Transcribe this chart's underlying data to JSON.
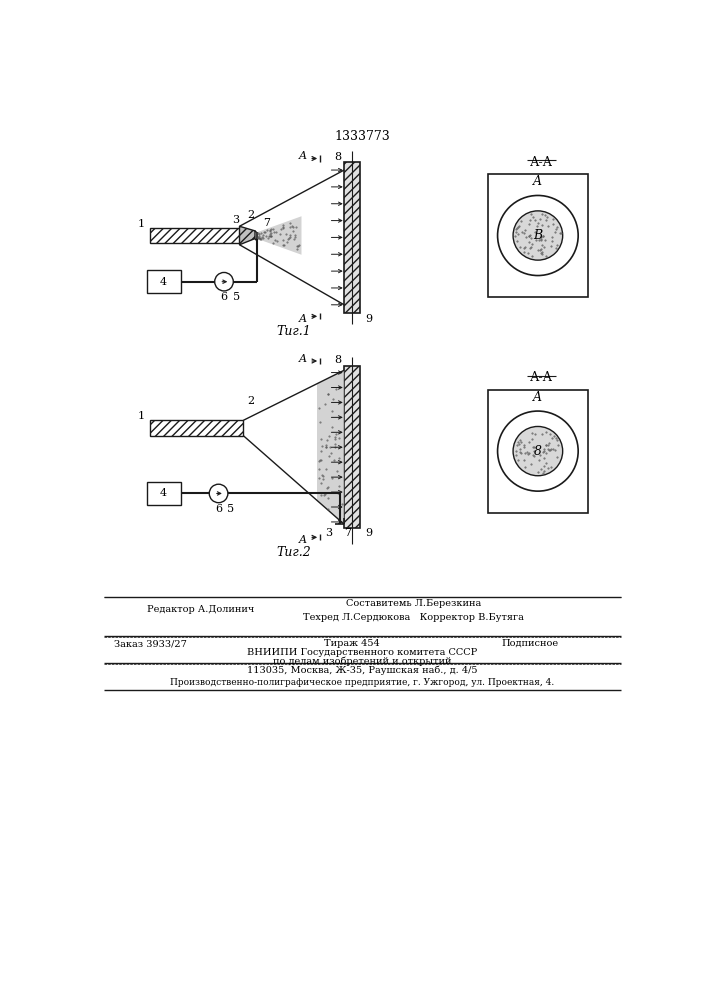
{
  "patent_number": "1333773",
  "fig1_label": "Τиг.1",
  "fig2_label": "Τиг.2",
  "section_label_1": "А-А",
  "section_label_2": "А-А",
  "line_color": "#1a1a1a",
  "footer_line1_left": "Редактор А.Долинич",
  "footer_line1_center": "Составитемь Л.Березкина",
  "footer_line2_center": "Техред Л.Сердюкова   Корректор В.Бутяга",
  "footer_order": "Заказ 3933/27",
  "footer_tirazh": "Тираж 454",
  "footer_podpisnoe": "Подписное",
  "footer_vniiipi": "ВНИИПИ Государственного комитета СССР",
  "footer_po_delam": "по делам изобретений и открытий",
  "footer_address": "113035, Москва, Ж-35, Раушская наб., д. 4/5",
  "footer_factory": "Производственно-полиграфическое предприятие, г. Ужгород, ул. Проектная, 4."
}
